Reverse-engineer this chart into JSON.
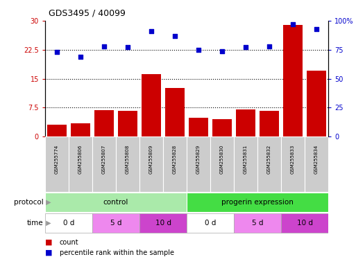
{
  "title": "GDS3495 / 40099",
  "samples": [
    "GSM255774",
    "GSM255806",
    "GSM255807",
    "GSM255808",
    "GSM255809",
    "GSM255828",
    "GSM255829",
    "GSM255830",
    "GSM255831",
    "GSM255832",
    "GSM255833",
    "GSM255834"
  ],
  "counts": [
    3.0,
    3.5,
    6.8,
    6.7,
    16.2,
    12.5,
    4.8,
    4.5,
    7.0,
    6.6,
    29.0,
    17.0
  ],
  "percentiles": [
    73.0,
    69.0,
    78.0,
    77.5,
    91.0,
    87.0,
    75.0,
    73.5,
    77.5,
    78.0,
    97.0,
    93.0
  ],
  "bar_color": "#cc0000",
  "dot_color": "#0000cc",
  "ylim_left": [
    0,
    30
  ],
  "ylim_right": [
    0,
    100
  ],
  "yticks_left": [
    0,
    7.5,
    15,
    22.5,
    30
  ],
  "yticks_right": [
    0,
    25,
    50,
    75,
    100
  ],
  "ytick_labels_left": [
    "0",
    "7.5",
    "15",
    "22.5",
    "30"
  ],
  "ytick_labels_right": [
    "0",
    "25",
    "50",
    "75",
    "100%"
  ],
  "protocol_groups": [
    {
      "label": "control",
      "start": 0,
      "end": 6,
      "color": "#aaeaaa"
    },
    {
      "label": "progerin expression",
      "start": 6,
      "end": 12,
      "color": "#44dd44"
    }
  ],
  "time_groups": [
    {
      "label": "0 d",
      "start": 0,
      "end": 2,
      "color": "#ffffff"
    },
    {
      "label": "5 d",
      "start": 2,
      "end": 4,
      "color": "#ee88ee"
    },
    {
      "label": "10 d",
      "start": 4,
      "end": 6,
      "color": "#cc44cc"
    },
    {
      "label": "0 d",
      "start": 6,
      "end": 8,
      "color": "#ffffff"
    },
    {
      "label": "5 d",
      "start": 8,
      "end": 10,
      "color": "#ee88ee"
    },
    {
      "label": "10 d",
      "start": 10,
      "end": 12,
      "color": "#cc44cc"
    }
  ],
  "legend_count_label": "count",
  "legend_pct_label": "percentile rank within the sample",
  "protocol_label": "protocol",
  "time_label": "time",
  "arrow_color": "#999999",
  "sample_bg_color": "#cccccc",
  "dotted_line_color": "#000000"
}
